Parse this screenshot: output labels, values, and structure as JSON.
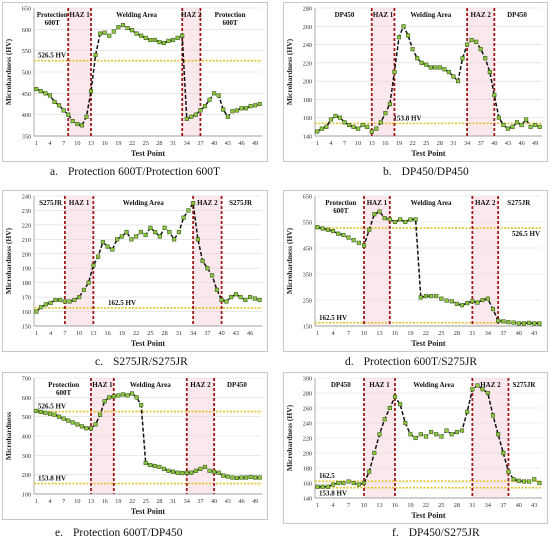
{
  "chart_data": [
    {
      "id": "a",
      "type": "line",
      "caption_label": "a.",
      "caption_text": "Protection 600T/Protection 600T",
      "xlabel": "Test Point",
      "ylabel": "Microhardness (HV)",
      "ylim": [
        350,
        650
      ],
      "yticks": [
        350,
        400,
        450,
        500,
        550,
        600,
        650
      ],
      "xticks": [
        1,
        4,
        7,
        10,
        13,
        16,
        19,
        22,
        25,
        28,
        31,
        34,
        37,
        40,
        43,
        46,
        49
      ],
      "xmax": 50,
      "zones": [
        {
          "text": "Protection 600T",
          "from": 1,
          "to": 8
        },
        {
          "text": "HAZ 1",
          "from": 8,
          "to": 13
        },
        {
          "text": "Welding Area",
          "from": 13,
          "to": 33
        },
        {
          "text": "HAZ 2",
          "from": 33,
          "to": 37
        },
        {
          "text": "Protection 600T",
          "from": 37,
          "to": 50
        }
      ],
      "boundaries": [
        8,
        13,
        33,
        37
      ],
      "hlines": [
        {
          "value": 526.5,
          "label": "526.5 HV",
          "label_pos": "left-above"
        }
      ],
      "series": [
        {
          "x": [
            1,
            2,
            3,
            4,
            5,
            6,
            7,
            8,
            9,
            10,
            11,
            12,
            13,
            14,
            15,
            16,
            17,
            18,
            19,
            20,
            21,
            22,
            23,
            24,
            25,
            26,
            27,
            28,
            29,
            30,
            31,
            32,
            33,
            34,
            35,
            36,
            37,
            38,
            39,
            40,
            41,
            42,
            43,
            44,
            45,
            46,
            47,
            48,
            49,
            50
          ],
          "y": [
            460,
            455,
            450,
            445,
            430,
            422,
            410,
            400,
            385,
            378,
            375,
            395,
            455,
            540,
            590,
            592,
            585,
            595,
            605,
            610,
            603,
            598,
            590,
            585,
            580,
            575,
            575,
            570,
            568,
            573,
            575,
            580,
            585,
            390,
            395,
            400,
            410,
            420,
            435,
            450,
            445,
            412,
            395,
            408,
            410,
            415,
            415,
            420,
            422,
            425
          ]
        }
      ]
    },
    {
      "id": "b",
      "type": "line",
      "caption_label": "b.",
      "caption_text": "DP450/DP450",
      "xlabel": "Test Point",
      "ylabel": "Microhardness (HV)",
      "ylim": [
        140,
        280
      ],
      "yticks": [
        140,
        160,
        180,
        200,
        220,
        240,
        260,
        280
      ],
      "xticks": [
        1,
        4,
        7,
        10,
        13,
        16,
        19,
        22,
        25,
        28,
        31,
        34,
        37,
        40,
        43,
        46,
        49
      ],
      "xmax": 50,
      "zones": [
        {
          "text": "DP450",
          "from": 1,
          "to": 13
        },
        {
          "text": "HAZ 1",
          "from": 13,
          "to": 18
        },
        {
          "text": "Welding Area",
          "from": 18,
          "to": 34
        },
        {
          "text": "HAZ 2",
          "from": 34,
          "to": 40
        },
        {
          "text": "DP450",
          "from": 40,
          "to": 50
        }
      ],
      "boundaries": [
        13,
        18,
        34,
        40
      ],
      "hlines": [
        {
          "value": 153.8,
          "label": "153.8 HV",
          "label_pos": "mid-below"
        }
      ],
      "series": [
        {
          "x": [
            1,
            2,
            3,
            4,
            5,
            6,
            7,
            8,
            9,
            10,
            11,
            12,
            13,
            14,
            15,
            16,
            17,
            18,
            19,
            20,
            21,
            22,
            23,
            24,
            25,
            26,
            27,
            28,
            29,
            30,
            31,
            32,
            33,
            34,
            35,
            36,
            37,
            38,
            39,
            40,
            41,
            42,
            43,
            44,
            45,
            46,
            47,
            48,
            49,
            50
          ],
          "y": [
            145,
            148,
            150,
            158,
            162,
            160,
            155,
            152,
            150,
            148,
            152,
            150,
            145,
            148,
            155,
            165,
            175,
            210,
            248,
            260,
            250,
            235,
            225,
            220,
            218,
            215,
            215,
            215,
            213,
            210,
            205,
            200,
            225,
            240,
            245,
            243,
            235,
            225,
            210,
            185,
            160,
            152,
            148,
            150,
            155,
            152,
            158,
            150,
            152,
            150
          ]
        }
      ]
    },
    {
      "id": "c",
      "type": "line",
      "caption_label": "c.",
      "caption_text": "S275JR/S275JR",
      "xlabel": "Test Point",
      "ylabel": "Microhardness (HV)",
      "ylim": [
        150,
        240
      ],
      "yticks": [
        150,
        160,
        170,
        180,
        190,
        200,
        210,
        220,
        230,
        240
      ],
      "xticks": [
        1,
        4,
        7,
        10,
        13,
        16,
        19,
        22,
        25,
        28,
        31,
        34,
        37,
        40,
        43,
        46
      ],
      "xmax": 48,
      "zones": [
        {
          "text": "S275JR",
          "from": 1,
          "to": 7
        },
        {
          "text": "HAZ 1",
          "from": 7,
          "to": 13
        },
        {
          "text": "Welding Area",
          "from": 13,
          "to": 34
        },
        {
          "text": "HAZ 2",
          "from": 34,
          "to": 40
        },
        {
          "text": "S275JR",
          "from": 40,
          "to": 48
        }
      ],
      "boundaries": [
        7,
        13,
        34,
        40
      ],
      "hlines": [
        {
          "value": 162.5,
          "label": "162.5 HV",
          "label_pos": "mid-above"
        }
      ],
      "series": [
        {
          "x": [
            1,
            2,
            3,
            4,
            5,
            6,
            7,
            8,
            9,
            10,
            11,
            12,
            13,
            14,
            15,
            16,
            17,
            18,
            19,
            20,
            21,
            22,
            23,
            24,
            25,
            26,
            27,
            28,
            29,
            30,
            31,
            32,
            33,
            34,
            35,
            36,
            37,
            38,
            39,
            40,
            41,
            42,
            43,
            44,
            45,
            46,
            47,
            48
          ],
          "y": [
            160,
            163,
            165,
            166,
            168,
            168,
            167,
            167,
            168,
            170,
            175,
            180,
            192,
            198,
            208,
            205,
            203,
            210,
            212,
            215,
            210,
            212,
            215,
            213,
            218,
            215,
            212,
            218,
            215,
            210,
            215,
            225,
            230,
            235,
            210,
            195,
            190,
            185,
            175,
            168,
            167,
            170,
            172,
            170,
            168,
            170,
            169,
            168
          ]
        }
      ]
    },
    {
      "id": "d",
      "type": "line",
      "caption_label": "d.",
      "caption_text": "Protection 600T/S275JR",
      "xlabel": "Test Point",
      "ylabel": "Microhardness (HV)",
      "ylim": [
        150,
        650
      ],
      "yticks": [
        150,
        250,
        350,
        450,
        550,
        650
      ],
      "xticks": [
        1,
        4,
        7,
        10,
        13,
        16,
        19,
        22,
        25,
        28,
        31,
        34,
        37,
        40,
        43
      ],
      "xmax": 44,
      "zones": [
        {
          "text": "Protection 600T",
          "from": 1,
          "to": 10
        },
        {
          "text": "HAZ 1",
          "from": 10,
          "to": 15
        },
        {
          "text": "Welding Area",
          "from": 15,
          "to": 31
        },
        {
          "text": "HAZ 2",
          "from": 31,
          "to": 36
        },
        {
          "text": "S275JR",
          "from": 36,
          "to": 44
        }
      ],
      "boundaries": [
        10,
        15,
        31,
        36
      ],
      "hlines": [
        {
          "value": 526.5,
          "label": "526.5 HV",
          "label_pos": "right-below"
        },
        {
          "value": 162.5,
          "label": "162.5 HV",
          "label_pos": "left-above"
        }
      ],
      "series": [
        {
          "x": [
            1,
            2,
            3,
            4,
            5,
            6,
            7,
            8,
            9,
            10,
            11,
            12,
            13,
            14,
            15,
            16,
            17,
            18,
            19,
            20,
            21,
            22,
            23,
            24,
            25,
            26,
            27,
            28,
            29,
            30,
            31,
            32,
            33,
            34,
            35,
            36,
            37,
            38,
            39,
            40,
            41,
            42,
            43,
            44
          ],
          "y": [
            530,
            525,
            520,
            515,
            505,
            500,
            490,
            480,
            470,
            460,
            520,
            580,
            590,
            565,
            560,
            550,
            560,
            550,
            560,
            560,
            260,
            265,
            265,
            265,
            255,
            248,
            245,
            235,
            230,
            238,
            245,
            240,
            250,
            255,
            215,
            170,
            168,
            165,
            163,
            160,
            160,
            162,
            160,
            160
          ]
        }
      ]
    },
    {
      "id": "e",
      "type": "line",
      "caption_label": "e.",
      "caption_text": "Protection 600T/DP450",
      "xlabel": "Test Point",
      "ylabel": "Microhardness",
      "ylim": [
        100,
        700
      ],
      "yticks": [
        100,
        200,
        300,
        400,
        500,
        600,
        700
      ],
      "xticks": [
        1,
        4,
        7,
        10,
        13,
        16,
        19,
        22,
        25,
        28,
        31,
        34,
        37,
        40,
        43,
        46,
        49
      ],
      "xmax": 50,
      "zones": [
        {
          "text": "Protection 600T",
          "from": 1,
          "to": 13
        },
        {
          "text": "HAZ 1",
          "from": 13,
          "to": 18
        },
        {
          "text": "Welding Area",
          "from": 18,
          "to": 34
        },
        {
          "text": "HAZ 2",
          "from": 34,
          "to": 40
        },
        {
          "text": "DP450",
          "from": 40,
          "to": 50
        }
      ],
      "boundaries": [
        13,
        18,
        34,
        40
      ],
      "hlines": [
        {
          "value": 526.5,
          "label": "526.5 HV",
          "label_pos": "left-above"
        },
        {
          "value": 153.8,
          "label": "153.8 HV",
          "label_pos": "left-above"
        }
      ],
      "series": [
        {
          "x": [
            1,
            2,
            3,
            4,
            5,
            6,
            7,
            8,
            9,
            10,
            11,
            12,
            13,
            14,
            15,
            16,
            17,
            18,
            19,
            20,
            21,
            22,
            23,
            24,
            25,
            26,
            27,
            28,
            29,
            30,
            31,
            32,
            33,
            34,
            35,
            36,
            37,
            38,
            39,
            40,
            41,
            42,
            43,
            44,
            45,
            46,
            47,
            48,
            49,
            50
          ],
          "y": [
            530,
            525,
            520,
            515,
            510,
            500,
            490,
            480,
            470,
            460,
            450,
            440,
            440,
            460,
            510,
            580,
            600,
            605,
            610,
            615,
            610,
            620,
            600,
            560,
            260,
            250,
            245,
            240,
            230,
            220,
            215,
            210,
            208,
            210,
            210,
            220,
            230,
            240,
            220,
            215,
            210,
            195,
            190,
            185,
            183,
            185,
            185,
            188,
            185,
            185
          ]
        }
      ]
    },
    {
      "id": "f",
      "type": "line",
      "caption_label": "f.",
      "caption_text": "DP450/S275JR",
      "xlabel": "Test Point",
      "ylabel": "Microhardness (HV)",
      "ylim": [
        140,
        300
      ],
      "yticks": [
        140,
        160,
        180,
        200,
        220,
        240,
        260,
        280,
        300
      ],
      "xticks": [
        1,
        4,
        7,
        10,
        13,
        16,
        19,
        22,
        25,
        28,
        31,
        34,
        37,
        40,
        43
      ],
      "xmax": 44,
      "zones": [
        {
          "text": "DP450",
          "from": 1,
          "to": 10
        },
        {
          "text": "HAZ 1",
          "from": 10,
          "to": 16
        },
        {
          "text": "Welding Area",
          "from": 16,
          "to": 31
        },
        {
          "text": "HAZ 2",
          "from": 31,
          "to": 38
        },
        {
          "text": "S275JR",
          "from": 38,
          "to": 44
        }
      ],
      "boundaries": [
        10,
        16,
        31,
        38
      ],
      "hlines": [
        {
          "value": 162.5,
          "label": "162.5",
          "label_pos": "left-above"
        },
        {
          "value": 153.8,
          "label": "153.8 HV",
          "label_pos": "left-below"
        }
      ],
      "series": [
        {
          "x": [
            1,
            2,
            3,
            4,
            5,
            6,
            7,
            8,
            9,
            10,
            11,
            12,
            13,
            14,
            15,
            16,
            17,
            18,
            19,
            20,
            21,
            22,
            23,
            24,
            25,
            26,
            27,
            28,
            29,
            30,
            31,
            32,
            33,
            34,
            35,
            36,
            37,
            38,
            39,
            40,
            41,
            42,
            43,
            44
          ],
          "y": [
            155,
            155,
            155,
            158,
            160,
            160,
            162,
            160,
            158,
            160,
            175,
            200,
            225,
            245,
            260,
            275,
            265,
            240,
            225,
            220,
            225,
            222,
            228,
            225,
            222,
            230,
            225,
            228,
            230,
            255,
            285,
            290,
            285,
            280,
            250,
            225,
            200,
            175,
            165,
            163,
            162,
            162,
            165,
            160
          ]
        }
      ]
    }
  ],
  "style": {
    "line_color": "#111111",
    "marker_fill": "#8dc63f",
    "marker_stroke": "#2d4a12",
    "boundary_color": "#a01818",
    "band_color": "#f7d5dc",
    "hline_color": "#e3c22a",
    "grid_color": "#d9d9d9",
    "axis_text_color": "#333333"
  }
}
